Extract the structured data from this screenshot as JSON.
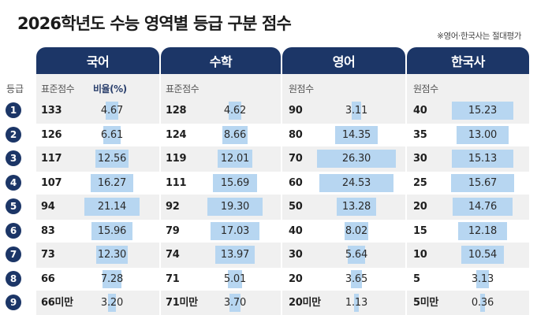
{
  "title": "2026학년도 수능 영역별 등급 구분 점수",
  "note": "※영어·한국사는 절대평가",
  "grade_label": "등급",
  "columns": [
    {
      "name": "국어",
      "sub1": "표준점수",
      "sub2": "비율(%)"
    },
    {
      "name": "수학",
      "sub1": "표준점수"
    },
    {
      "name": "영어",
      "sub1": "원점수"
    },
    {
      "name": "한국사",
      "sub1": "원점수"
    }
  ],
  "bar_color": "#b7d6f1",
  "header_color": "#1c3667",
  "rows": [
    {
      "grade": "1",
      "kor_score": "133",
      "kor_ratio": "4.67",
      "math_score": "128",
      "math_ratio": "4.62",
      "eng_score": "90",
      "eng_ratio": "3.11",
      "hist_score": "40",
      "hist_ratio": "15.23"
    },
    {
      "grade": "2",
      "kor_score": "126",
      "kor_ratio": "6.61",
      "math_score": "124",
      "math_ratio": "8.66",
      "eng_score": "80",
      "eng_ratio": "14.35",
      "hist_score": "35",
      "hist_ratio": "13.00"
    },
    {
      "grade": "3",
      "kor_score": "117",
      "kor_ratio": "12.56",
      "math_score": "119",
      "math_ratio": "12.01",
      "eng_score": "70",
      "eng_ratio": "26.30",
      "hist_score": "30",
      "hist_ratio": "15.13"
    },
    {
      "grade": "4",
      "kor_score": "107",
      "kor_ratio": "16.27",
      "math_score": "111",
      "math_ratio": "15.69",
      "eng_score": "60",
      "eng_ratio": "24.53",
      "hist_score": "25",
      "hist_ratio": "15.67"
    },
    {
      "grade": "5",
      "kor_score": "94",
      "kor_ratio": "21.14",
      "math_score": "92",
      "math_ratio": "19.30",
      "eng_score": "50",
      "eng_ratio": "13.28",
      "hist_score": "20",
      "hist_ratio": "14.76"
    },
    {
      "grade": "6",
      "kor_score": "83",
      "kor_ratio": "15.96",
      "math_score": "79",
      "math_ratio": "17.03",
      "eng_score": "40",
      "eng_ratio": "8.02",
      "hist_score": "15",
      "hist_ratio": "12.18"
    },
    {
      "grade": "7",
      "kor_score": "73",
      "kor_ratio": "12.30",
      "math_score": "74",
      "math_ratio": "13.97",
      "eng_score": "30",
      "eng_ratio": "5.64",
      "hist_score": "10",
      "hist_ratio": "10.54"
    },
    {
      "grade": "8",
      "kor_score": "66",
      "kor_ratio": "7.28",
      "math_score": "71",
      "math_ratio": "5.01",
      "eng_score": "20",
      "eng_ratio": "3.65",
      "hist_score": "5",
      "hist_ratio": "3.13"
    },
    {
      "grade": "9",
      "kor_score": "66미만",
      "kor_ratio": "3.20",
      "math_score": "71미만",
      "math_ratio": "3.70",
      "eng_score": "20미만",
      "eng_ratio": "1.13",
      "hist_score": "5미만",
      "hist_ratio": "0.36"
    }
  ]
}
